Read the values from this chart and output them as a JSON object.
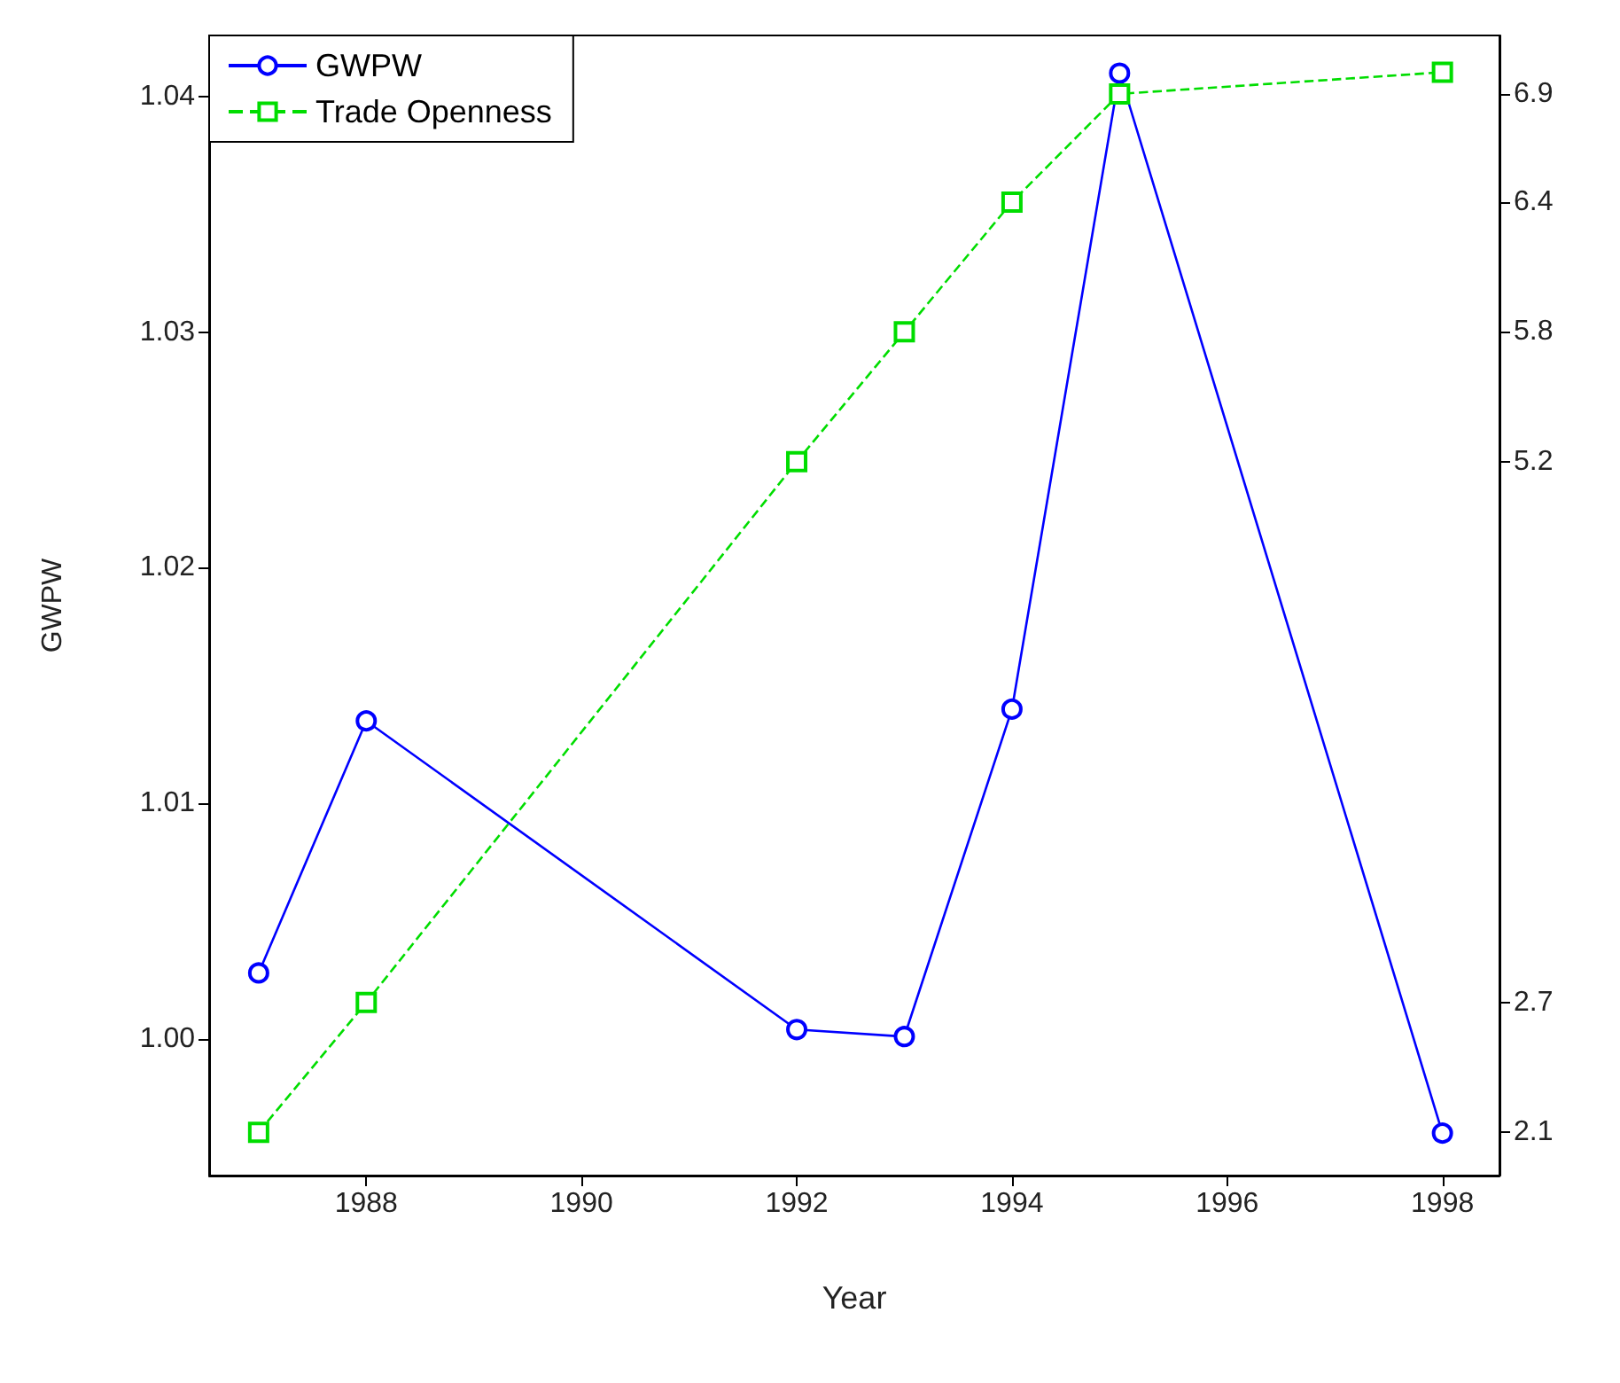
{
  "chart_data": {
    "type": "line",
    "xlabel": "Year",
    "ylabel": "GWPW",
    "xlim": [
      1986.54,
      1998.53
    ],
    "xticks": [
      1988,
      1990,
      1992,
      1994,
      1996,
      1998
    ],
    "ylim": [
      0.9942,
      1.0426
    ],
    "yticks": [
      {
        "value": 1,
        "label": "1.00"
      },
      1.01,
      1.02,
      1.03,
      1.04
    ],
    "y2lim": [
      1.9,
      7.17
    ],
    "y2ticks": [
      2.1,
      2.7,
      5.2,
      5.8,
      6.4,
      6.9
    ],
    "grid": false,
    "legend": "top left",
    "series": [
      {
        "name": "GWPW",
        "color": "#0000ff",
        "marker": "circle",
        "line_style": "solid",
        "x": [
          1987,
          1988,
          1992,
          1993,
          1994,
          1995,
          1998
        ],
        "values": [
          1.0028,
          1.0135,
          1.0004,
          1.0001,
          1.014,
          1.041,
          0.996
        ]
      },
      {
        "name": "Trade Openness",
        "color": "#00dd00",
        "marker": "square",
        "line_style": "dashed",
        "axis": "y2",
        "x": [
          1987,
          1988,
          1992,
          1993,
          1994,
          1995,
          1998
        ],
        "values": [
          2.1,
          2.7,
          5.2,
          5.8,
          6.4,
          6.9,
          7.0
        ]
      }
    ]
  }
}
